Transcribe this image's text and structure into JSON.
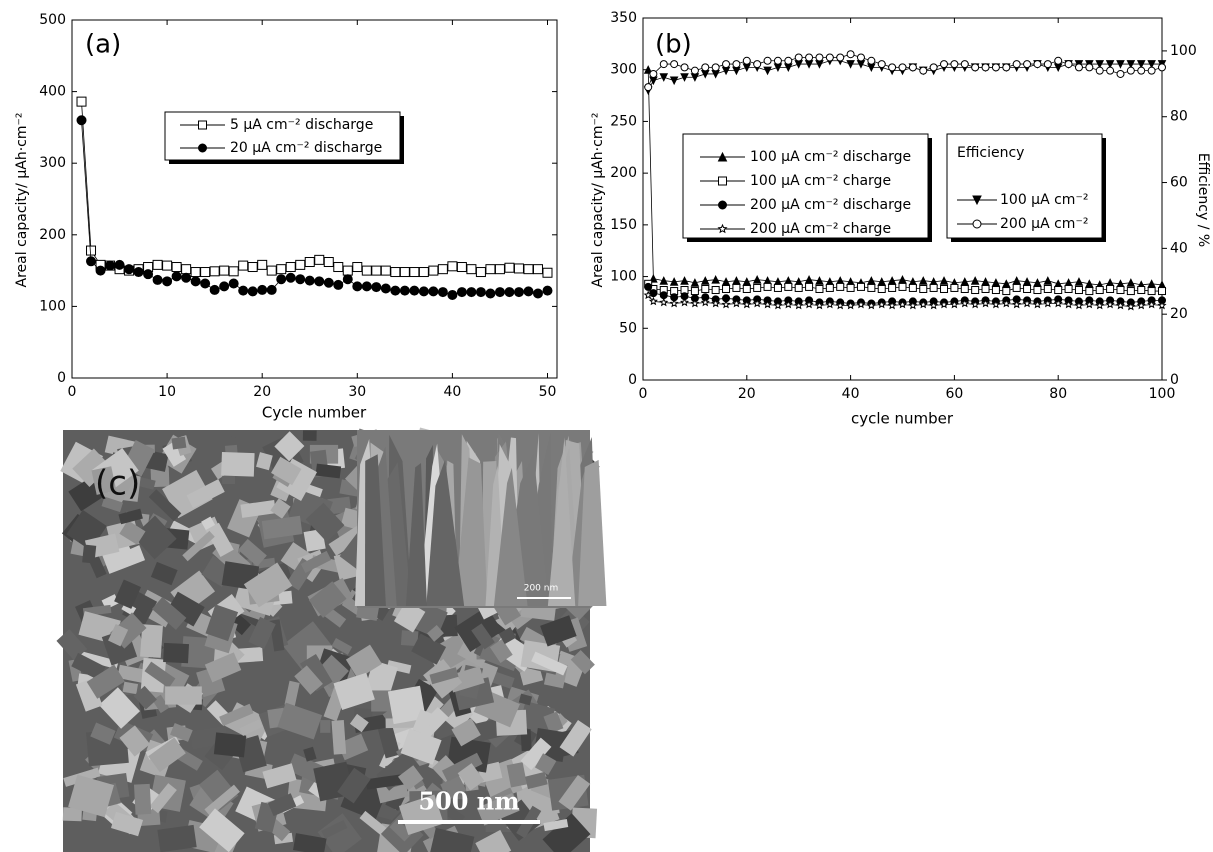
{
  "chart_data": [
    {
      "type": "line",
      "panel_label": "(a)",
      "x_label": "Cycle number",
      "y_label": "Areal capacity/ μAh·cm⁻²",
      "xlim": [
        0,
        51
      ],
      "xticks": [
        0,
        10,
        20,
        30,
        40,
        50
      ],
      "ylim": [
        0,
        500
      ],
      "yticks": [
        0,
        100,
        200,
        300,
        400,
        500
      ],
      "x": [
        1,
        2,
        3,
        4,
        5,
        6,
        7,
        8,
        9,
        10,
        11,
        12,
        13,
        14,
        15,
        16,
        17,
        18,
        19,
        20,
        21,
        22,
        23,
        24,
        25,
        26,
        27,
        28,
        29,
        30,
        31,
        32,
        33,
        34,
        35,
        36,
        37,
        38,
        39,
        40,
        41,
        42,
        43,
        44,
        45,
        46,
        47,
        48,
        49,
        50
      ],
      "series": [
        {
          "name": "5 μA cm⁻²  discharge",
          "color": "#000000",
          "marker": "square",
          "filled": false,
          "values": [
            386,
            178,
            158,
            157,
            152,
            150,
            152,
            155,
            158,
            157,
            155,
            152,
            148,
            148,
            149,
            150,
            149,
            157,
            155,
            158,
            150,
            152,
            155,
            158,
            162,
            165,
            162,
            155,
            150,
            155,
            150,
            150,
            150,
            148,
            148,
            148,
            148,
            150,
            152,
            156,
            155,
            152,
            148,
            152,
            152,
            154,
            153,
            152,
            152,
            147
          ]
        },
        {
          "name": "20 μA cm⁻²  discharge",
          "color": "#000000",
          "marker": "circle",
          "filled": true,
          "values": [
            360,
            163,
            150,
            157,
            158,
            152,
            148,
            145,
            137,
            135,
            142,
            140,
            135,
            132,
            123,
            128,
            132,
            122,
            121,
            123,
            123,
            138,
            140,
            138,
            136,
            135,
            133,
            130,
            138,
            128,
            128,
            127,
            125,
            122,
            122,
            122,
            121,
            121,
            120,
            116,
            120,
            120,
            120,
            118,
            120,
            120,
            120,
            121,
            118,
            122
          ]
        }
      ]
    },
    {
      "type": "line",
      "panel_label": "(b)",
      "x_label": "cycle number",
      "y_label": "Areal capacity/ μAh·cm⁻²",
      "y2_label": "Efficiency / %",
      "legend2_title": "Efficiency",
      "xlim": [
        0,
        100
      ],
      "xticks": [
        0,
        20,
        40,
        60,
        80,
        100
      ],
      "ylim": [
        0,
        350
      ],
      "yticks": [
        0,
        50,
        100,
        150,
        200,
        250,
        300,
        350
      ],
      "y2lim": [
        0,
        110
      ],
      "y2ticks": [
        0,
        20,
        40,
        60,
        80,
        100
      ],
      "x": [
        1,
        2,
        4,
        6,
        8,
        10,
        12,
        14,
        16,
        18,
        20,
        22,
        24,
        26,
        28,
        30,
        32,
        34,
        36,
        38,
        40,
        42,
        44,
        46,
        48,
        50,
        52,
        54,
        56,
        58,
        60,
        62,
        64,
        66,
        68,
        70,
        72,
        74,
        76,
        78,
        80,
        82,
        84,
        86,
        88,
        90,
        92,
        94,
        96,
        98,
        100
      ],
      "series": [
        {
          "name": "100 μA cm⁻²  discharge",
          "color": "#000000",
          "marker": "triangle",
          "filled": true,
          "values": [
            300,
            98,
            96,
            95,
            96,
            94,
            96,
            97,
            95,
            96,
            95,
            97,
            96,
            95,
            96,
            95,
            97,
            96,
            95,
            96,
            95,
            94,
            96,
            95,
            96,
            97,
            95,
            96,
            95,
            96,
            94,
            95,
            96,
            95,
            94,
            93,
            96,
            95,
            94,
            96,
            93,
            94,
            95,
            93,
            92,
            94,
            93,
            94,
            92,
            93,
            92
          ]
        },
        {
          "name": "100 μA cm⁻²  charge",
          "color": "#000000",
          "marker": "square",
          "filled": false,
          "values": [
            93,
            88,
            87,
            86,
            87,
            86,
            88,
            87,
            88,
            89,
            88,
            89,
            90,
            89,
            90,
            89,
            90,
            88,
            89,
            90,
            89,
            90,
            89,
            88,
            89,
            90,
            89,
            88,
            89,
            88,
            89,
            88,
            87,
            88,
            87,
            86,
            89,
            88,
            87,
            88,
            87,
            88,
            87,
            86,
            87,
            88,
            87,
            86,
            87,
            86,
            86
          ]
        },
        {
          "name": "200 μA cm⁻²  discharge",
          "color": "#000000",
          "marker": "circle",
          "filled": true,
          "values": [
            90,
            84,
            82,
            80,
            81,
            79,
            80,
            78,
            79,
            78,
            77,
            78,
            77,
            76,
            77,
            76,
            77,
            75,
            76,
            75,
            74,
            75,
            74,
            75,
            76,
            75,
            76,
            75,
            76,
            75,
            76,
            77,
            76,
            77,
            76,
            77,
            78,
            77,
            76,
            77,
            78,
            77,
            76,
            77,
            76,
            77,
            76,
            75,
            76,
            77,
            77
          ]
        },
        {
          "name": "200 μA cm⁻²  charge",
          "color": "#000000",
          "marker": "star",
          "filled": false,
          "values": [
            82,
            76,
            75,
            74,
            75,
            74,
            75,
            74,
            73,
            74,
            73,
            74,
            73,
            72,
            73,
            72,
            73,
            72,
            73,
            72,
            72,
            73,
            72,
            73,
            72,
            73,
            72,
            73,
            72,
            73,
            73,
            74,
            73,
            74,
            73,
            74,
            73,
            74,
            73,
            74,
            74,
            73,
            72,
            73,
            72,
            73,
            72,
            71,
            72,
            73,
            72
          ]
        },
        {
          "name": "100  μA cm⁻²",
          "color": "#000000",
          "marker": "triangle-down",
          "filled": true,
          "axis": "y2",
          "values": [
            88,
            91,
            92,
            91,
            92,
            92,
            93,
            93,
            94,
            94,
            95,
            95,
            94,
            95,
            95,
            96,
            96,
            96,
            97,
            97,
            96,
            96,
            95,
            95,
            94,
            94,
            95,
            94,
            94,
            95,
            95,
            95,
            95,
            95,
            95,
            95,
            95,
            95,
            96,
            95,
            95,
            96,
            96,
            96,
            96,
            96,
            96,
            96,
            96,
            96,
            96
          ]
        },
        {
          "name": "200  μA cm⁻²",
          "color": "#000000",
          "marker": "circle",
          "filled": false,
          "axis": "y2",
          "values": [
            89,
            93,
            96,
            96,
            95,
            94,
            95,
            95,
            96,
            96,
            97,
            96,
            97,
            97,
            97,
            98,
            98,
            98,
            98,
            98,
            99,
            98,
            97,
            96,
            95,
            95,
            95,
            94,
            95,
            96,
            96,
            96,
            95,
            95,
            95,
            95,
            96,
            96,
            96,
            96,
            97,
            96,
            95,
            95,
            94,
            94,
            93,
            94,
            94,
            94,
            95
          ]
        }
      ]
    }
  ],
  "sem_image": {
    "panel_label": "(c)",
    "inset_scale": "200 nm",
    "scale": "500 nm"
  }
}
